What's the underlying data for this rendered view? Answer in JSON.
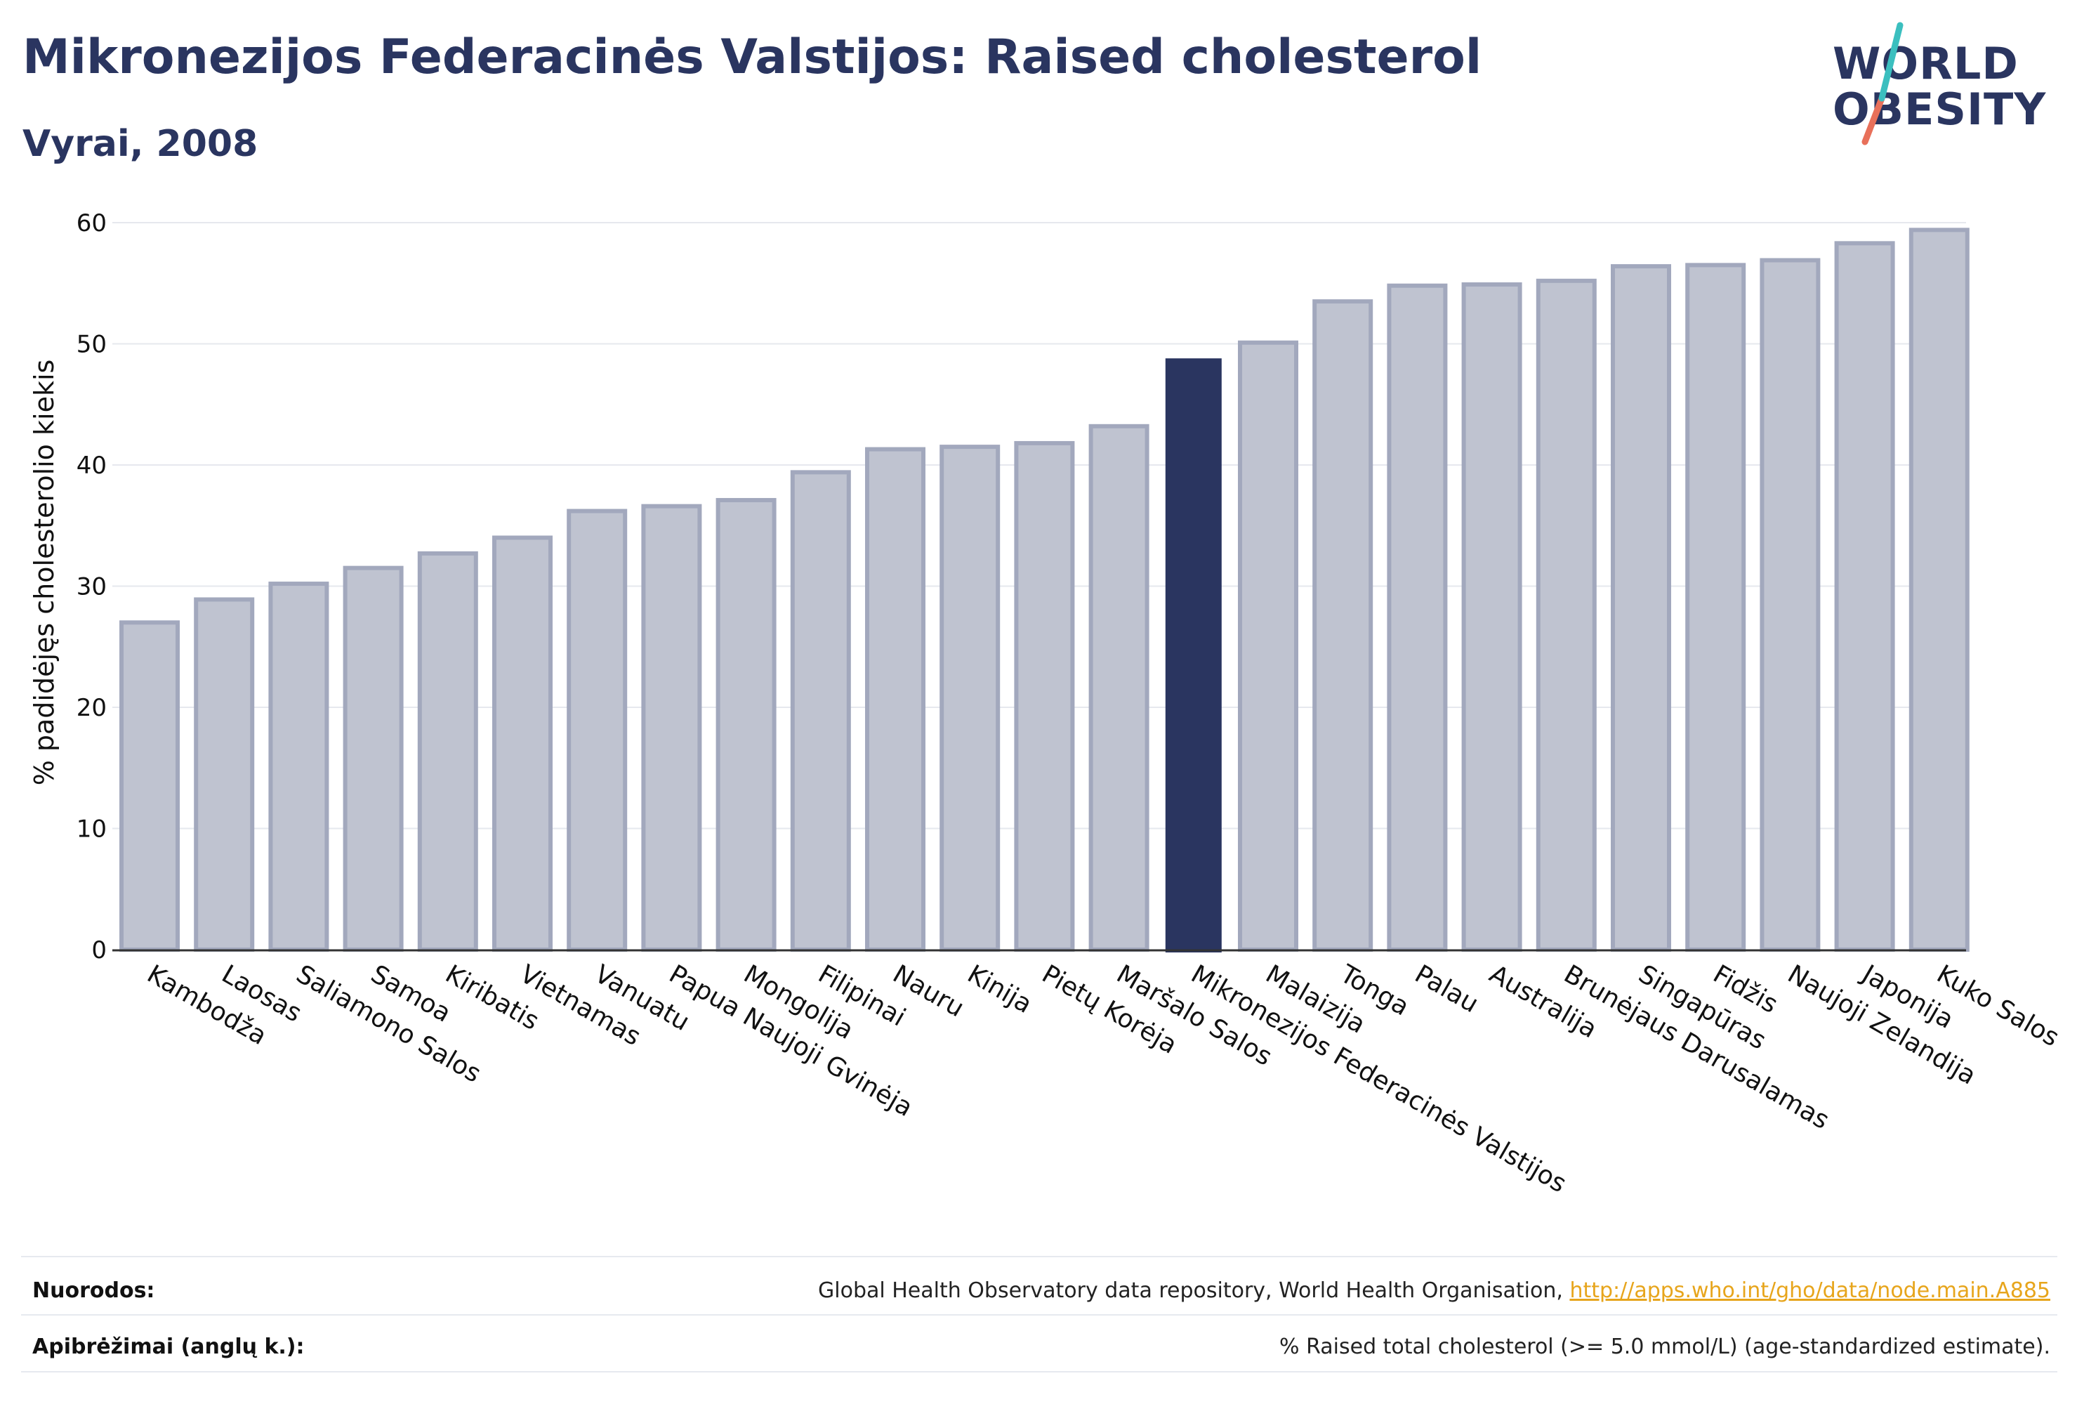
{
  "header": {
    "title": "Mikronezijos Federacinės Valstijos: Raised cholesterol",
    "subtitle": "Vyrai, 2008"
  },
  "logo": {
    "line1": "WORLD",
    "line2": "OBESITY",
    "colors": {
      "teal": "#3bbfbf",
      "coral": "#e8705a",
      "navy": "#2a3560"
    }
  },
  "chart_data": {
    "type": "bar",
    "ylabel": "% padidėjęs cholesterolio kiekis",
    "xlabel": "",
    "ylim": [
      0,
      60
    ],
    "yticks": [
      0,
      10,
      20,
      30,
      40,
      50,
      60
    ],
    "grid": true,
    "categories": [
      "Kambodža",
      "Laosas",
      "Saliamono Salos",
      "Samoa",
      "Kiribatis",
      "Vietnamas",
      "Vanuatu",
      "Papua Naujoji Gvinėja",
      "Mongolija",
      "Filipinai",
      "Nauru",
      "Kinija",
      "Pietų Korėja",
      "Maršalo Salos",
      "Mikronezijos Federacinės Valstijos",
      "Malaizija",
      "Tonga",
      "Palau",
      "Australija",
      "Brunėjaus Darusalamas",
      "Singapūras",
      "Fidžis",
      "Naujoji Zelandija",
      "Japonija",
      "Kuko Salos"
    ],
    "values": [
      27.0,
      28.9,
      30.2,
      31.5,
      32.7,
      34.0,
      36.2,
      36.6,
      37.1,
      39.4,
      41.3,
      41.5,
      41.8,
      43.2,
      48.8,
      50.1,
      53.5,
      54.8,
      54.9,
      55.2,
      56.4,
      56.5,
      56.9,
      58.3,
      59.4
    ],
    "highlight": "Mikronezijos Federacinės Valstijos",
    "colors": {
      "bar": "#bfc3d0",
      "bar_edge": "#a2a8bd",
      "highlight": "#2a3560",
      "grid": "#e6e8ee",
      "axis": "#333333"
    }
  },
  "footer": {
    "references_label": "Nuorodos:",
    "references_text": "Global Health Observatory data repository, World Health Organisation, ",
    "references_link": "http://apps.who.int/gho/data/node.main.A885",
    "definitions_label": "Apibrėžimai (anglų k.):",
    "definitions_text": "% Raised total cholesterol (>= 5.0 mmol/L) (age-standardized estimate)."
  }
}
